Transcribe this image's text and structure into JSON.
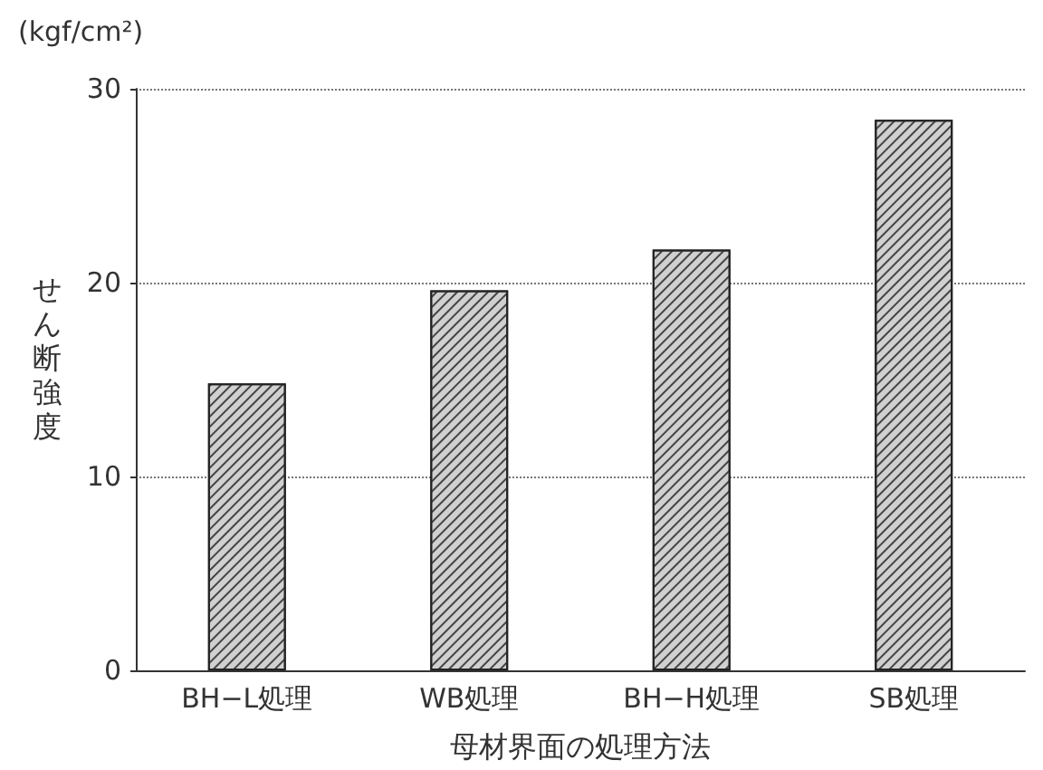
{
  "chart_data": {
    "type": "bar",
    "categories": [
      "BH−L処理",
      "WB処理",
      "BH−H処理",
      "SB処理"
    ],
    "values": [
      14.8,
      19.6,
      21.7,
      28.4
    ],
    "color": "#d0d0d0",
    "xlabel": "母材界面の処理方法",
    "ylabel": "せん断強度",
    "annotations": [
      "(kgf/cm²)"
    ],
    "ylim": [
      0,
      30
    ],
    "yticks": [
      0,
      10,
      20,
      30
    ],
    "grid": "y"
  }
}
